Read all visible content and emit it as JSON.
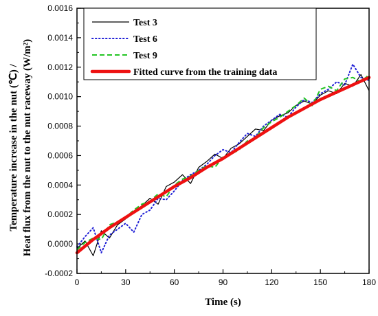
{
  "chart_data": {
    "type": "line",
    "xlabel": "Time (s)",
    "ylabel_line1": "Temperature increase in the nut (℃) /",
    "ylabel_line2": "Heat flux from the nut to the nut raceway (W/m²)",
    "xlim": [
      0,
      180
    ],
    "ylim": [
      -0.0002,
      0.0016
    ],
    "x_ticks": [
      "0",
      "30",
      "60",
      "90",
      "120",
      "150",
      "180"
    ],
    "y_ticks": [
      "-0.0002",
      "0.0000",
      "0.0002",
      "0.0004",
      "0.0006",
      "0.0008",
      "0.0010",
      "0.0012",
      "0.0014",
      "0.0016"
    ],
    "legend_position": "top-left",
    "series": [
      {
        "name": "Test 3",
        "color": "#000000",
        "style": "solid",
        "x": [
          0,
          5,
          10,
          15,
          20,
          25,
          30,
          35,
          40,
          45,
          50,
          55,
          60,
          65,
          70,
          75,
          80,
          85,
          90,
          95,
          100,
          105,
          110,
          115,
          120,
          125,
          130,
          135,
          140,
          145,
          150,
          155,
          160,
          165,
          170,
          175,
          180
        ],
        "y": [
          -3e-05,
          2e-05,
          -8e-05,
          9e-05,
          4e-05,
          0.00013,
          0.00017,
          0.00021,
          0.00026,
          0.00031,
          0.00027,
          0.00039,
          0.00042,
          0.00047,
          0.00041,
          0.00052,
          0.00056,
          0.00061,
          0.00058,
          0.00065,
          0.00068,
          0.00073,
          0.00078,
          0.00077,
          0.00084,
          0.00087,
          0.00089,
          0.00094,
          0.00097,
          0.00095,
          0.00101,
          0.00104,
          0.00102,
          0.00109,
          0.00107,
          0.00115,
          0.00104
        ]
      },
      {
        "name": "Test 6",
        "color": "#1f1fd6",
        "style": "dotted",
        "x": [
          0,
          5,
          10,
          15,
          20,
          25,
          30,
          35,
          40,
          45,
          50,
          55,
          60,
          65,
          70,
          75,
          80,
          85,
          90,
          95,
          100,
          105,
          110,
          115,
          120,
          125,
          130,
          135,
          140,
          145,
          150,
          155,
          160,
          165,
          170,
          175,
          180
        ],
        "y": [
          -2e-05,
          5e-05,
          0.00011,
          -6e-05,
          6e-05,
          0.0001,
          0.00014,
          8e-05,
          0.0002,
          0.00023,
          0.00031,
          0.0003,
          0.00036,
          0.00043,
          0.00047,
          0.0005,
          0.00054,
          0.0006,
          0.00064,
          0.00062,
          0.00069,
          0.00075,
          0.00073,
          0.0008,
          0.00084,
          0.00088,
          0.00086,
          0.00093,
          0.00098,
          0.00096,
          0.00102,
          0.00105,
          0.0011,
          0.00108,
          0.00122,
          0.00113,
          0.00111
        ]
      },
      {
        "name": "Test 9",
        "color": "#22c422",
        "style": "dashed",
        "x": [
          0,
          5,
          10,
          15,
          20,
          25,
          30,
          35,
          40,
          45,
          50,
          55,
          60,
          65,
          70,
          75,
          80,
          85,
          90,
          95,
          100,
          105,
          110,
          115,
          120,
          125,
          130,
          135,
          140,
          145,
          150,
          155,
          160,
          165,
          170,
          175,
          180
        ],
        "y": [
          -4e-05,
          1e-05,
          4e-05,
          3e-05,
          0.00013,
          0.00015,
          0.00018,
          0.00023,
          0.00027,
          0.00029,
          0.00034,
          0.00032,
          0.0004,
          0.00044,
          0.00046,
          0.0005,
          0.00053,
          0.00052,
          0.00059,
          0.00061,
          0.00064,
          0.0007,
          0.00072,
          0.00079,
          0.00083,
          0.00086,
          0.0009,
          0.00094,
          0.00099,
          0.00094,
          0.00105,
          0.00107,
          0.00104,
          0.00112,
          0.00113,
          0.0011,
          0.00115
        ]
      },
      {
        "name": "Fitted curve from the training data",
        "color": "#ee1111",
        "style": "solid-thick",
        "x": [
          0,
          10,
          20,
          30,
          40,
          50,
          60,
          70,
          80,
          90,
          100,
          110,
          120,
          130,
          140,
          150,
          160,
          170,
          180
        ],
        "y": [
          -6e-05,
          3e-05,
          0.00011,
          0.00018,
          0.00025,
          0.00032,
          0.00039,
          0.00045,
          0.00052,
          0.00058,
          0.00065,
          0.00072,
          0.00079,
          0.00086,
          0.00092,
          0.00098,
          0.00103,
          0.00108,
          0.00113
        ]
      }
    ]
  }
}
